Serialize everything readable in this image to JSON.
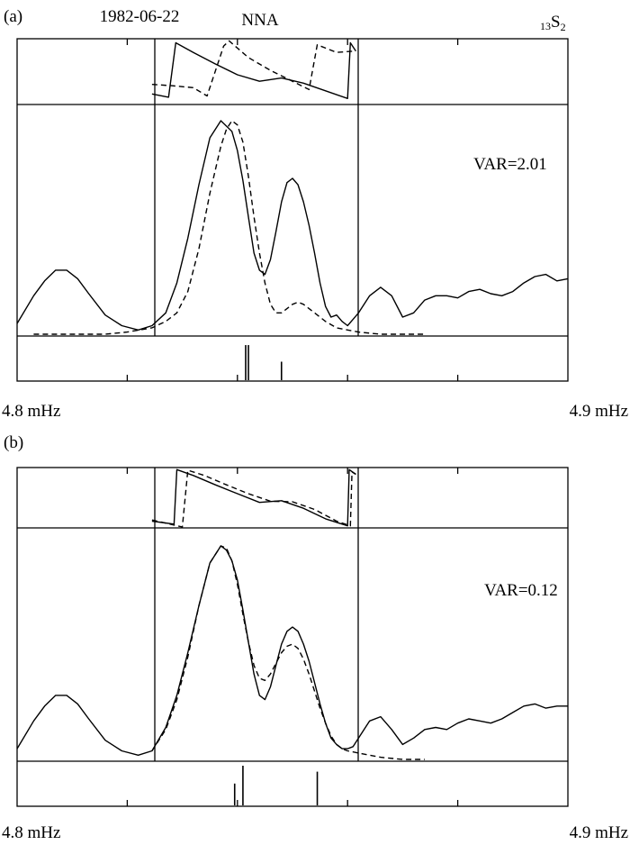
{
  "panels": [
    {
      "label": "(a)",
      "date": "1982-06-22",
      "station": "NNA",
      "mode_base": "13",
      "mode_letter": "S",
      "mode_sub": "2",
      "var_text": "VAR=2.01",
      "xmin_label": "4.8 mHz",
      "xmax_label": "4.9 mHz"
    },
    {
      "label": "(b)",
      "var_text": "VAR=0.12",
      "xmin_label": "4.8 mHz",
      "xmax_label": "4.9 mHz"
    }
  ],
  "chart_data": [
    {
      "type": "line",
      "x_range_mHz": [
        4.8,
        4.9
      ],
      "x_ticks_mHz": [
        4.82,
        4.84,
        4.86,
        4.88
      ],
      "fit_window_mHz": [
        4.8245,
        4.8615
      ],
      "amplitude": {
        "observed_solid": {
          "x": [
            4.8,
            4.803,
            4.805,
            4.807,
            4.809,
            4.811,
            4.813,
            4.816,
            4.819,
            4.822,
            4.8245,
            4.827,
            4.829,
            4.831,
            4.833,
            4.835,
            4.837,
            4.839,
            4.84,
            4.841,
            4.842,
            4.843,
            4.844,
            4.845,
            4.846,
            4.847,
            4.848,
            4.849,
            4.85,
            4.851,
            4.852,
            4.853,
            4.854,
            4.855,
            4.856,
            4.857,
            4.858,
            4.859,
            4.86,
            4.861,
            4.862,
            4.864,
            4.866,
            4.868,
            4.87,
            4.872,
            4.874,
            4.876,
            4.878,
            4.88,
            4.882,
            4.884,
            4.886,
            4.888,
            4.89,
            4.892,
            4.894,
            4.896,
            4.898,
            4.9
          ],
          "y": [
            0.05,
            0.18,
            0.25,
            0.3,
            0.3,
            0.26,
            0.19,
            0.09,
            0.04,
            0.02,
            0.04,
            0.1,
            0.24,
            0.45,
            0.7,
            0.92,
            1.0,
            0.95,
            0.86,
            0.72,
            0.55,
            0.38,
            0.3,
            0.28,
            0.35,
            0.48,
            0.62,
            0.71,
            0.73,
            0.7,
            0.62,
            0.51,
            0.38,
            0.24,
            0.13,
            0.08,
            0.09,
            0.06,
            0.04,
            0.07,
            0.1,
            0.18,
            0.22,
            0.18,
            0.08,
            0.1,
            0.16,
            0.18,
            0.18,
            0.17,
            0.2,
            0.21,
            0.19,
            0.18,
            0.2,
            0.24,
            0.27,
            0.28,
            0.25,
            0.26
          ]
        },
        "synthetic_dashed": {
          "x": [
            4.803,
            4.81,
            4.816,
            4.82,
            4.8245,
            4.827,
            4.829,
            4.831,
            4.833,
            4.835,
            4.837,
            4.838,
            4.839,
            4.84,
            4.841,
            4.842,
            4.843,
            4.844,
            4.845,
            4.846,
            4.847,
            4.848,
            4.849,
            4.85,
            4.851,
            4.852,
            4.853,
            4.854,
            4.856,
            4.858,
            4.86,
            4.862,
            4.866,
            4.87,
            4.874
          ],
          "y": [
            0.0,
            0.0,
            0.0,
            0.01,
            0.03,
            0.06,
            0.1,
            0.2,
            0.4,
            0.66,
            0.88,
            0.96,
            1.0,
            0.98,
            0.9,
            0.74,
            0.55,
            0.38,
            0.24,
            0.14,
            0.1,
            0.1,
            0.12,
            0.14,
            0.15,
            0.14,
            0.12,
            0.1,
            0.06,
            0.03,
            0.02,
            0.01,
            0.0,
            0.0,
            0.0
          ]
        }
      },
      "phase": {
        "observed_solid": {
          "x": [
            4.8245,
            4.8275,
            4.8288,
            4.832,
            4.836,
            4.84,
            4.844,
            4.848,
            4.852,
            4.856,
            4.86,
            4.8605,
            4.8615
          ],
          "y": [
            0.15,
            0.1,
            0.95,
            0.8,
            0.62,
            0.45,
            0.35,
            0.4,
            0.32,
            0.2,
            0.08,
            0.95,
            0.82
          ]
        },
        "synthetic_dashed": {
          "x": [
            4.8245,
            4.828,
            4.832,
            4.8345,
            4.8375,
            4.8385,
            4.842,
            4.846,
            4.85,
            4.853,
            4.8545,
            4.858,
            4.861
          ],
          "y": [
            0.3,
            0.28,
            0.25,
            0.12,
            0.9,
            0.98,
            0.72,
            0.52,
            0.35,
            0.22,
            0.92,
            0.8,
            0.82
          ]
        }
      },
      "mode_lines": [
        {
          "x": 4.8415,
          "height": 0.95
        },
        {
          "x": 4.842,
          "height": 0.95
        },
        {
          "x": 4.848,
          "height": 0.5
        }
      ]
    },
    {
      "type": "line",
      "x_range_mHz": [
        4.8,
        4.9
      ],
      "x_ticks_mHz": [
        4.82,
        4.84,
        4.86,
        4.88
      ],
      "fit_window_mHz": [
        4.8245,
        4.8615
      ],
      "amplitude": {
        "observed_solid": {
          "x": [
            4.8,
            4.803,
            4.805,
            4.807,
            4.809,
            4.811,
            4.813,
            4.816,
            4.819,
            4.822,
            4.8245,
            4.827,
            4.829,
            4.831,
            4.833,
            4.835,
            4.837,
            4.838,
            4.839,
            4.84,
            4.841,
            4.842,
            4.843,
            4.844,
            4.845,
            4.846,
            4.847,
            4.848,
            4.849,
            4.85,
            4.851,
            4.852,
            4.853,
            4.854,
            4.855,
            4.856,
            4.857,
            4.858,
            4.859,
            4.86,
            4.861,
            4.862,
            4.864,
            4.866,
            4.868,
            4.87,
            4.872,
            4.874,
            4.876,
            4.878,
            4.88,
            4.882,
            4.884,
            4.886,
            4.888,
            4.89,
            4.892,
            4.894,
            4.896,
            4.898,
            4.9
          ],
          "y": [
            0.05,
            0.18,
            0.25,
            0.3,
            0.3,
            0.26,
            0.19,
            0.09,
            0.04,
            0.02,
            0.04,
            0.15,
            0.3,
            0.5,
            0.72,
            0.92,
            1.0,
            0.98,
            0.93,
            0.84,
            0.7,
            0.55,
            0.4,
            0.3,
            0.28,
            0.34,
            0.44,
            0.54,
            0.6,
            0.62,
            0.6,
            0.54,
            0.46,
            0.36,
            0.26,
            0.17,
            0.1,
            0.07,
            0.05,
            0.05,
            0.06,
            0.1,
            0.18,
            0.2,
            0.14,
            0.07,
            0.1,
            0.14,
            0.15,
            0.14,
            0.17,
            0.19,
            0.18,
            0.17,
            0.19,
            0.22,
            0.25,
            0.26,
            0.24,
            0.25,
            0.25
          ]
        },
        "synthetic_dashed": {
          "x": [
            4.8245,
            4.827,
            4.829,
            4.831,
            4.833,
            4.835,
            4.837,
            4.838,
            4.839,
            4.84,
            4.841,
            4.842,
            4.843,
            4.844,
            4.845,
            4.846,
            4.847,
            4.848,
            4.849,
            4.85,
            4.851,
            4.852,
            4.853,
            4.854,
            4.855,
            4.856,
            4.857,
            4.858,
            4.859,
            4.86,
            4.862,
            4.866,
            4.87,
            4.874
          ],
          "y": [
            0.04,
            0.14,
            0.28,
            0.48,
            0.72,
            0.92,
            1.0,
            0.99,
            0.93,
            0.82,
            0.68,
            0.55,
            0.44,
            0.38,
            0.37,
            0.4,
            0.45,
            0.5,
            0.53,
            0.54,
            0.52,
            0.47,
            0.4,
            0.32,
            0.24,
            0.17,
            0.11,
            0.07,
            0.05,
            0.04,
            0.03,
            0.01,
            0.0,
            0.0
          ]
        }
      },
      "phase": {
        "observed_solid": {
          "x": [
            4.8245,
            4.8285,
            4.829,
            4.832,
            4.836,
            4.84,
            4.844,
            4.848,
            4.852,
            4.856,
            4.86,
            4.8603,
            4.8615
          ],
          "y": [
            0.1,
            0.05,
            0.98,
            0.88,
            0.72,
            0.57,
            0.42,
            0.45,
            0.32,
            0.14,
            0.02,
            0.98,
            0.9
          ]
        },
        "synthetic_dashed": {
          "x": [
            4.8245,
            4.83,
            4.831,
            4.834,
            4.838,
            4.842,
            4.846,
            4.85,
            4.854,
            4.858,
            4.8605,
            4.8608,
            4.8615
          ],
          "y": [
            0.12,
            0.0,
            0.97,
            0.88,
            0.72,
            0.57,
            0.44,
            0.43,
            0.3,
            0.1,
            0.02,
            0.94,
            0.9
          ]
        }
      },
      "mode_lines": [
        {
          "x": 4.8395,
          "height": 0.55
        },
        {
          "x": 4.841,
          "height": 1.0
        },
        {
          "x": 4.8545,
          "height": 0.85
        }
      ]
    }
  ]
}
